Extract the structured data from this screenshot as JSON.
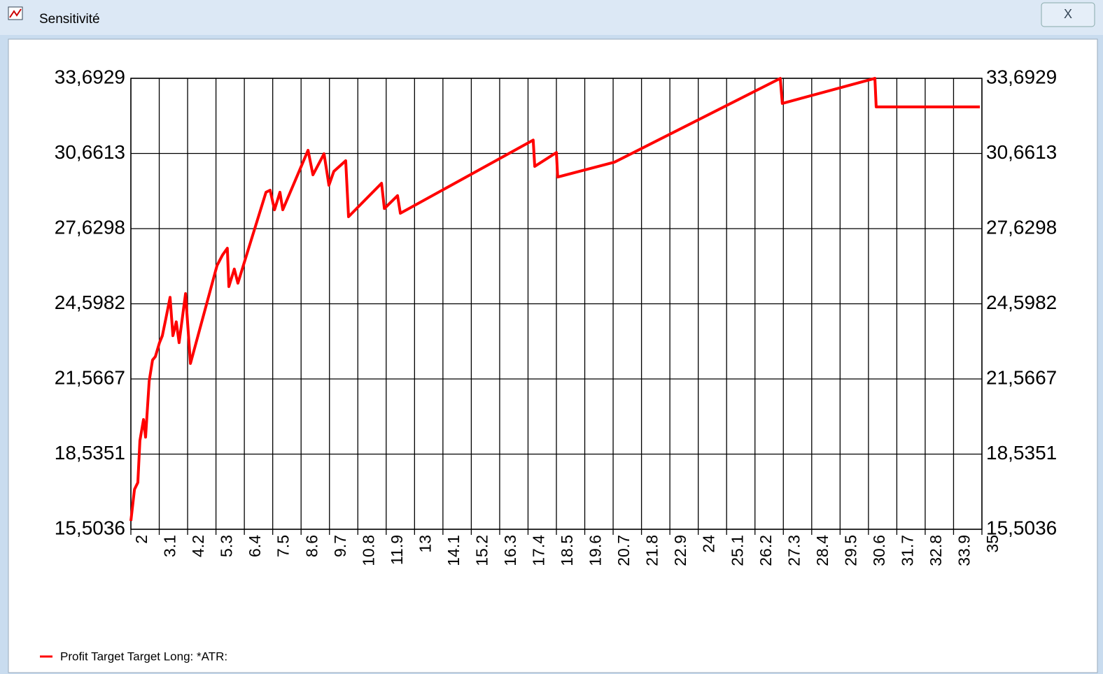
{
  "window": {
    "title": "Sensitivité",
    "close": "X"
  },
  "chart_data": {
    "type": "line",
    "x": [
      2.0,
      2.14,
      2.27,
      2.35,
      2.49,
      2.57,
      2.71,
      2.84,
      2.95,
      3.11,
      3.22,
      3.36,
      3.52,
      3.63,
      3.76,
      3.87,
      4.12,
      4.31,
      5.34,
      5.55,
      5.74,
      5.8,
      6.01,
      6.15,
      6.36,
      7.24,
      7.4,
      7.57,
      7.78,
      7.89,
      8.87,
      9.06,
      9.49,
      9.68,
      9.87,
      10.33,
      10.44,
      11.72,
      11.83,
      12.34,
      12.45,
      17.6,
      17.66,
      18.5,
      18.55,
      20.75,
      27.18,
      27.26,
      30.85,
      30.9,
      34.92
    ],
    "series": [
      {
        "name": "Profit Target Target Long: *ATR:",
        "color": "#ff0000",
        "values": [
          15.84,
          17.11,
          17.39,
          19.08,
          19.93,
          19.22,
          21.48,
          22.33,
          22.47,
          23.03,
          23.31,
          24.02,
          24.86,
          23.31,
          23.87,
          23.03,
          25.01,
          22.19,
          26.14,
          26.56,
          26.84,
          25.29,
          26.0,
          25.43,
          26.14,
          29.1,
          29.18,
          28.39,
          29.1,
          28.39,
          30.79,
          29.8,
          30.65,
          29.38,
          29.94,
          30.37,
          28.11,
          29.46,
          28.44,
          28.96,
          28.25,
          31.2,
          30.14,
          30.7,
          29.71,
          30.31,
          33.69,
          32.68,
          33.69,
          32.54,
          32.54
        ]
      }
    ],
    "xlim": [
      2,
      35
    ],
    "xticks": [
      2,
      3.1,
      4.2,
      5.3,
      6.4,
      7.5,
      8.6,
      9.7,
      10.8,
      11.9,
      13,
      14.1,
      15.2,
      16.3,
      17.4,
      18.5,
      19.6,
      20.7,
      21.8,
      22.9,
      24,
      25.1,
      26.2,
      27.3,
      28.4,
      29.5,
      30.6,
      31.7,
      32.8,
      33.9,
      35
    ],
    "ylim": [
      15.5036,
      33.6929
    ],
    "yticks": [
      {
        "value": 15.5036,
        "label": "15,5036"
      },
      {
        "value": 18.5351,
        "label": "18,5351"
      },
      {
        "value": 21.5667,
        "label": "21,5667"
      },
      {
        "value": 24.5982,
        "label": "24,5982"
      },
      {
        "value": 27.6298,
        "label": "27,6298"
      },
      {
        "value": 30.6613,
        "label": "30,6613"
      },
      {
        "value": 33.6929,
        "label": "33,6929"
      }
    ],
    "grid": true
  }
}
